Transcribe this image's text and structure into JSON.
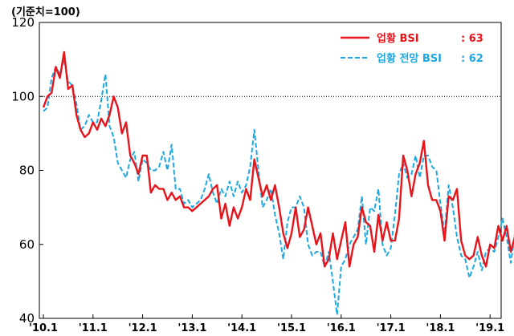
{
  "chart_data": {
    "type": "line",
    "unit_label": "(기준치=100)",
    "ylim": [
      40,
      120
    ],
    "yticks": [
      "40",
      "60",
      "80",
      "100",
      "120"
    ],
    "x_ticks": [
      "'10.1",
      "'11.1",
      "'12.1",
      "'13.1",
      "'14.1",
      "'15.1",
      "'16.1",
      "'17.1",
      "'18.1",
      "'19.1"
    ],
    "x_start": "2010-01",
    "reference_line": 100,
    "series": [
      {
        "name": "업황 BSI",
        "last_label": ": 63",
        "color": "#e8141b",
        "dash": "solid",
        "values": [
          97,
          100,
          101,
          108,
          105,
          112,
          102,
          103,
          95,
          91,
          89,
          90,
          93,
          91,
          94,
          92,
          95,
          100,
          97,
          90,
          93,
          84,
          82,
          79,
          84,
          84,
          74,
          76,
          75,
          75,
          72,
          74,
          72,
          73,
          70,
          70,
          69,
          70,
          71,
          72,
          73,
          75,
          76,
          67,
          71,
          65,
          70,
          67,
          70,
          75,
          72,
          83,
          78,
          73,
          76,
          72,
          76,
          70,
          63,
          59,
          63,
          70,
          62,
          64,
          70,
          65,
          60,
          63,
          54,
          56,
          63,
          56,
          61,
          66,
          54,
          60,
          62,
          70,
          66,
          65,
          58,
          68,
          61,
          66,
          61,
          61,
          67,
          84,
          80,
          73,
          79,
          82,
          88,
          76,
          72,
          72,
          69,
          61,
          73,
          72,
          75,
          61,
          57,
          56,
          57,
          62,
          57,
          54,
          60,
          59,
          65,
          61,
          65,
          58,
          62,
          65,
          63
        ]
      },
      {
        "name": "업황 전망 BSI",
        "last_label": ": 62",
        "color": "#1ea8e0",
        "dash": "dashed",
        "values": [
          96,
          97,
          105,
          108,
          106,
          110,
          104,
          103,
          98,
          91,
          92,
          95,
          93,
          93,
          99,
          106,
          92,
          89,
          82,
          80,
          78,
          83,
          85,
          77,
          83,
          82,
          80,
          80,
          81,
          85,
          80,
          87,
          75,
          75,
          71,
          72,
          70,
          71,
          72,
          75,
          79,
          74,
          71,
          75,
          73,
          77,
          73,
          77,
          74,
          76,
          81,
          91,
          80,
          70,
          72,
          75,
          68,
          63,
          56,
          66,
          70,
          70,
          73,
          70,
          60,
          57,
          58,
          58,
          54,
          58,
          50,
          41,
          54,
          56,
          60,
          62,
          64,
          73,
          60,
          70,
          69,
          75,
          60,
          57,
          59,
          68,
          79,
          82,
          78,
          79,
          84,
          78,
          84,
          84,
          81,
          80,
          71,
          63,
          76,
          70,
          62,
          57,
          56,
          51,
          54,
          58,
          53,
          58,
          59,
          58,
          62,
          67,
          62,
          55,
          63,
          67,
          62
        ]
      }
    ],
    "grid": false,
    "legend_position": "top-right"
  }
}
